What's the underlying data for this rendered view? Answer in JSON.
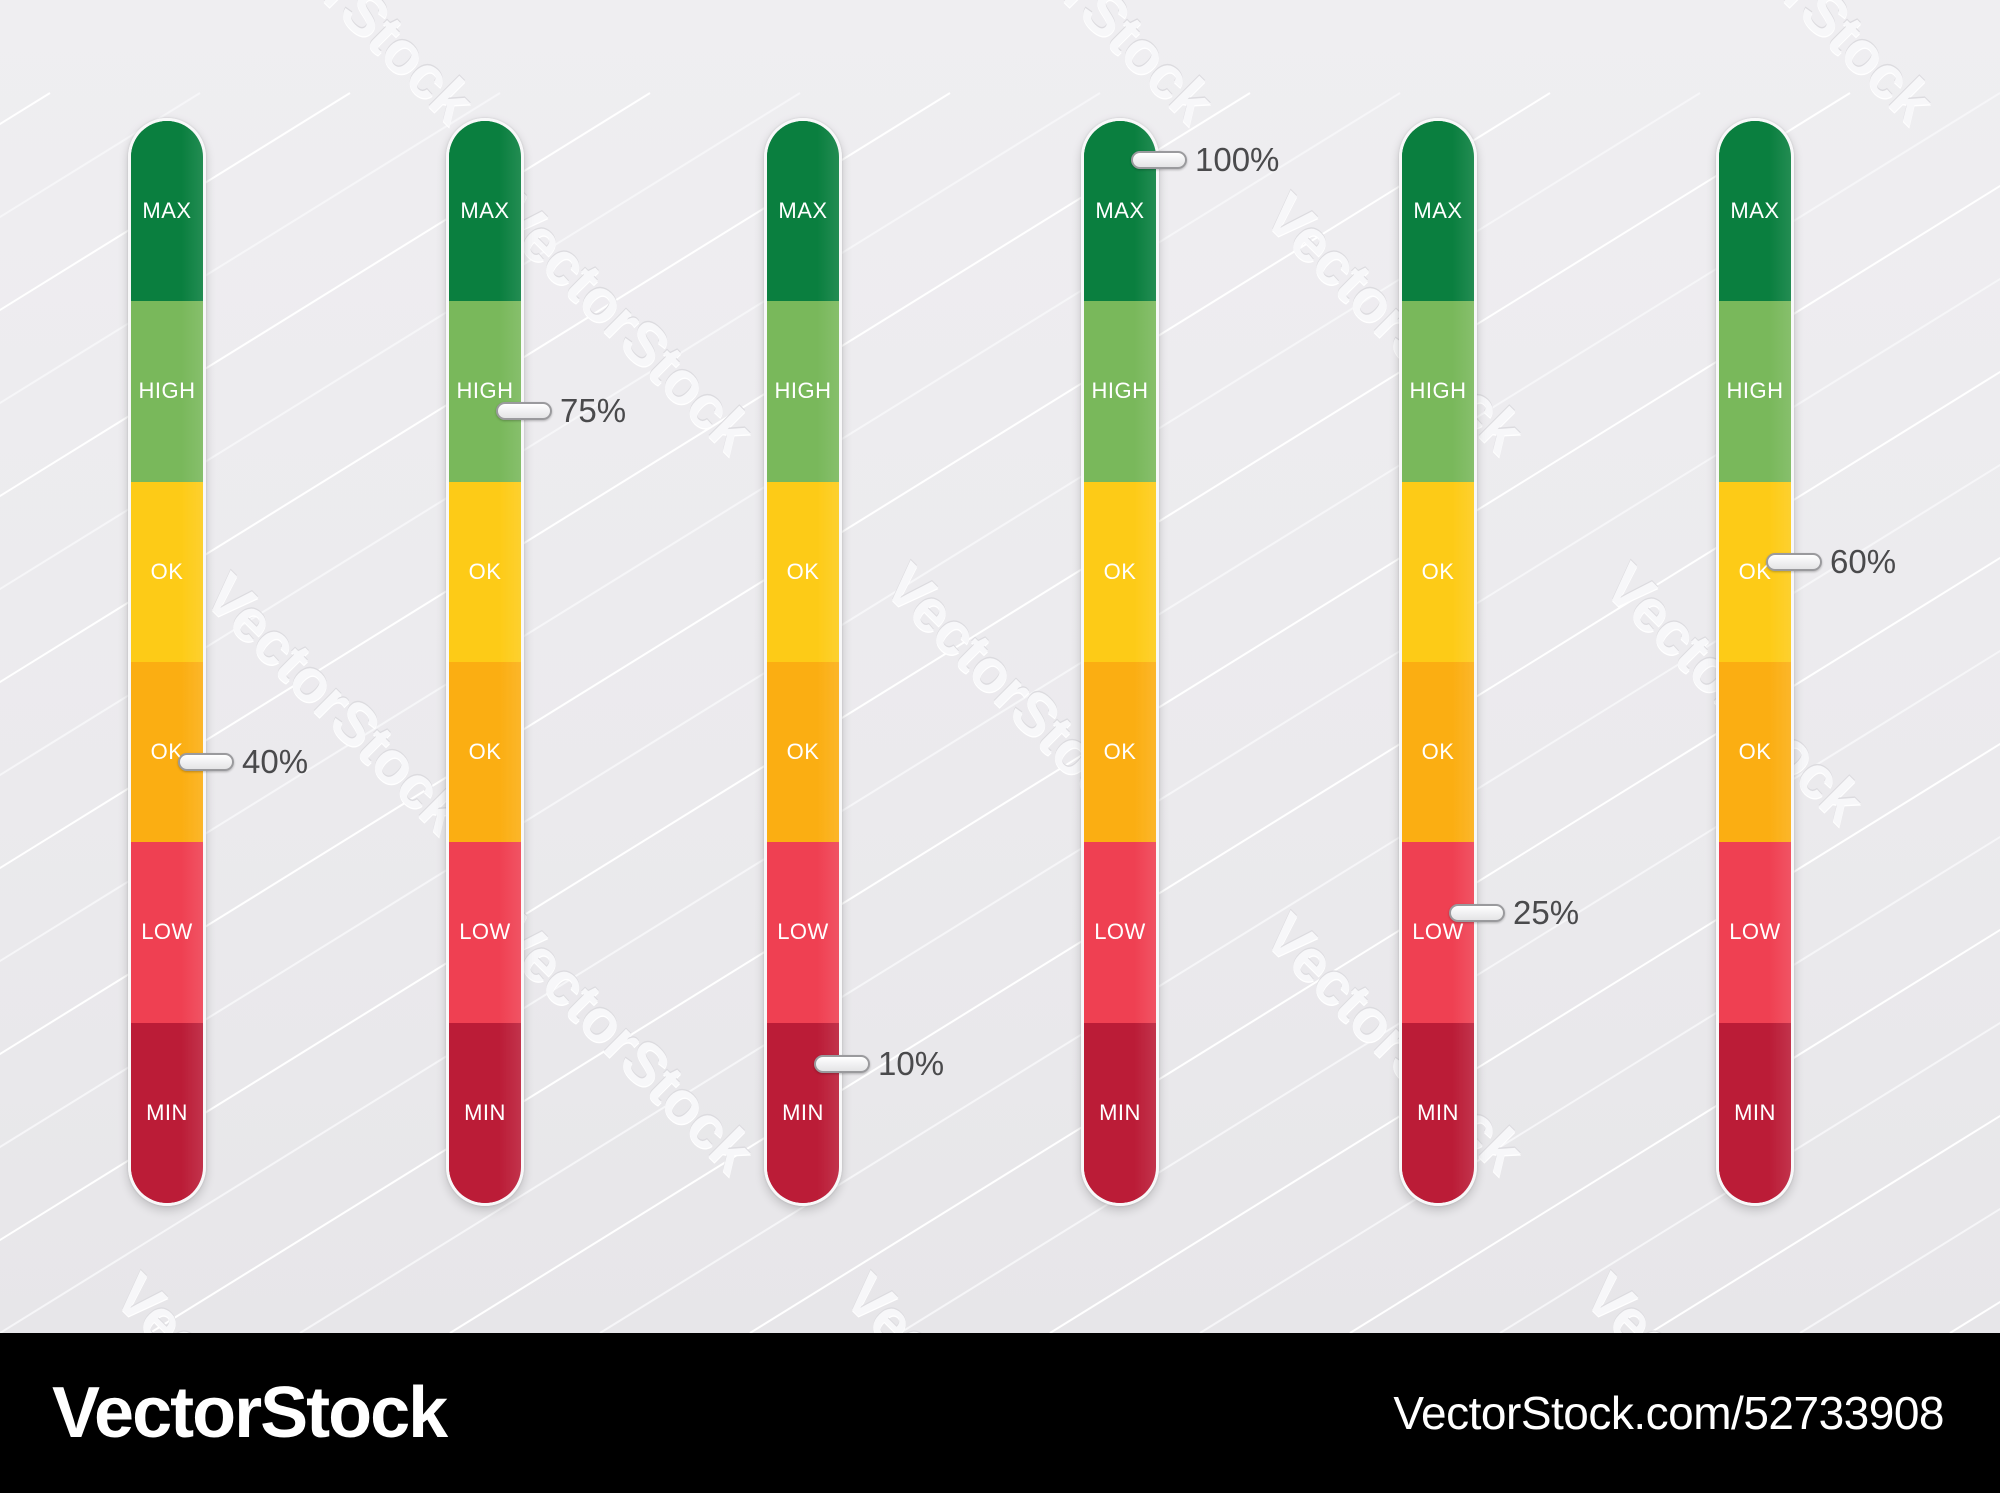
{
  "colors": {
    "max": "#0a7f3f",
    "high": "#79b85b",
    "ok_upper": "#fdcb17",
    "ok_lower": "#fbae12",
    "low": "#ef4052",
    "min": "#bb1c37",
    "footer_bg": "#000000"
  },
  "meters": [
    {
      "segments": [
        {
          "label": "MAX",
          "level": "max"
        },
        {
          "label": "HIGH",
          "level": "high"
        },
        {
          "label": "OK",
          "level": "ok_upper"
        },
        {
          "label": "OK",
          "level": "ok_lower"
        },
        {
          "label": "LOW",
          "level": "low"
        },
        {
          "label": "MIN",
          "level": "min"
        }
      ],
      "value": 0.4,
      "value_label": "40%"
    },
    {
      "segments": [
        {
          "label": "MAX",
          "level": "max"
        },
        {
          "label": "HIGH",
          "level": "high"
        },
        {
          "label": "OK",
          "level": "ok_upper"
        },
        {
          "label": "OK",
          "level": "ok_lower"
        },
        {
          "label": "LOW",
          "level": "low"
        },
        {
          "label": "MIN",
          "level": "min"
        }
      ],
      "value": 0.75,
      "value_label": "75%"
    },
    {
      "segments": [
        {
          "label": "MAX",
          "level": "max"
        },
        {
          "label": "HIGH",
          "level": "high"
        },
        {
          "label": "OK",
          "level": "ok_upper"
        },
        {
          "label": "OK",
          "level": "ok_lower"
        },
        {
          "label": "LOW",
          "level": "low"
        },
        {
          "label": "MIN",
          "level": "min"
        }
      ],
      "value": 0.1,
      "value_label": "10%"
    },
    {
      "segments": [
        {
          "label": "MAX",
          "level": "max"
        },
        {
          "label": "HIGH",
          "level": "high"
        },
        {
          "label": "OK",
          "level": "ok_upper"
        },
        {
          "label": "OK",
          "level": "ok_lower"
        },
        {
          "label": "LOW",
          "level": "low"
        },
        {
          "label": "MIN",
          "level": "min"
        }
      ],
      "value": 1.0,
      "value_label": "100%"
    },
    {
      "segments": [
        {
          "label": "MAX",
          "level": "max"
        },
        {
          "label": "HIGH",
          "level": "high"
        },
        {
          "label": "OK",
          "level": "ok_upper"
        },
        {
          "label": "OK",
          "level": "ok_lower"
        },
        {
          "label": "LOW",
          "level": "low"
        },
        {
          "label": "MIN",
          "level": "min"
        }
      ],
      "value": 0.25,
      "value_label": "25%"
    },
    {
      "segments": [
        {
          "label": "MAX",
          "level": "max"
        },
        {
          "label": "HIGH",
          "level": "high"
        },
        {
          "label": "OK",
          "level": "ok_upper"
        },
        {
          "label": "OK",
          "level": "ok_lower"
        },
        {
          "label": "LOW",
          "level": "low"
        },
        {
          "label": "MIN",
          "level": "min"
        }
      ],
      "value": 0.6,
      "value_label": "60%"
    }
  ],
  "watermark": "VectorStock",
  "footer": {
    "brand": "VectorStock",
    "image_id": "VectorStock.com/52733908"
  }
}
